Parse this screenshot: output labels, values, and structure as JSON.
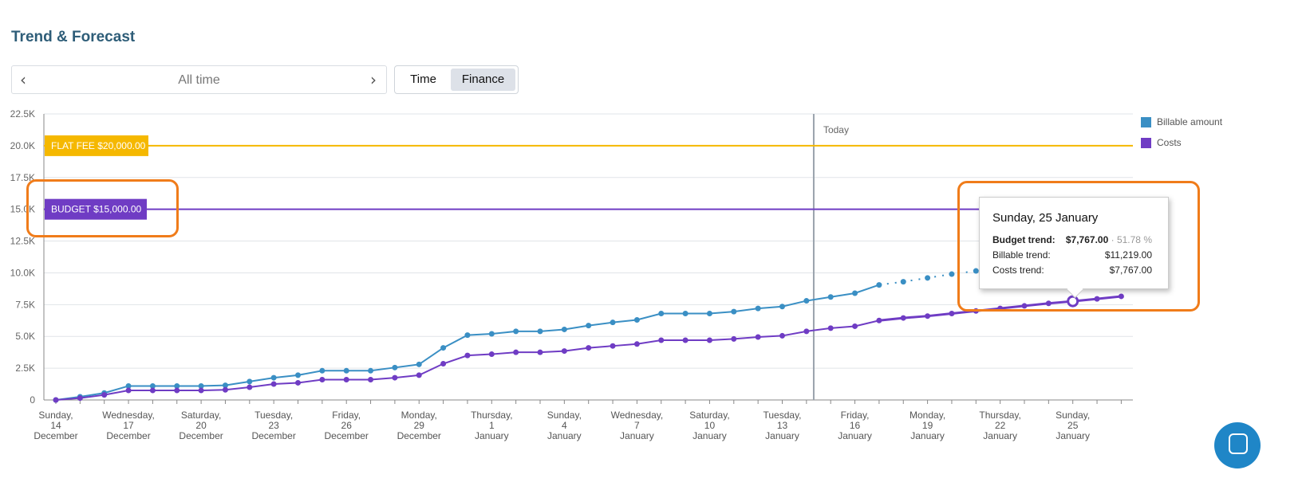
{
  "header": {
    "title": "Trend & Forecast"
  },
  "range": {
    "label": "All time",
    "prev_icon": "chevron-left-icon",
    "next_icon": "chevron-right-icon"
  },
  "view_toggle": {
    "time_label": "Time",
    "finance_label": "Finance",
    "selected": "Finance"
  },
  "chart_data": {
    "type": "line",
    "ylim": [
      0,
      22500
    ],
    "y_ticks": [
      "0",
      "2.5K",
      "5.0K",
      "7.5K",
      "10.0K",
      "12.5K",
      "15.0K",
      "17.5K",
      "20.0K",
      "22.5K"
    ],
    "y_tick_values": [
      0,
      2500,
      5000,
      7500,
      10000,
      12500,
      15000,
      17500,
      20000,
      22500
    ],
    "x_ticks": [
      [
        "Sunday,",
        "14",
        "December"
      ],
      [
        "Wednesday,",
        "17",
        "December"
      ],
      [
        "Saturday,",
        "20",
        "December"
      ],
      [
        "Tuesday,",
        "23",
        "December"
      ],
      [
        "Friday,",
        "26",
        "December"
      ],
      [
        "Monday,",
        "29",
        "December"
      ],
      [
        "Thursday,",
        "1",
        "January"
      ],
      [
        "Sunday,",
        "4",
        "January"
      ],
      [
        "Wednesday,",
        "7",
        "January"
      ],
      [
        "Saturday,",
        "10",
        "January"
      ],
      [
        "Tuesday,",
        "13",
        "January"
      ],
      [
        "Friday,",
        "16",
        "January"
      ],
      [
        "Monday,",
        "19",
        "January"
      ],
      [
        "Thursday,",
        "22",
        "January"
      ],
      [
        "Sunday,",
        "25",
        "January"
      ]
    ],
    "today_label": "Today",
    "grid": true,
    "legend_position": "top-right",
    "reference_lines": [
      {
        "label": "FLAT FEE $20,000.00",
        "value": 20000,
        "color": "#f5b800"
      },
      {
        "label": "BUDGET $15,000.00",
        "value": 15000,
        "color": "#6f3cc4"
      }
    ],
    "series": [
      {
        "name": "Billable amount",
        "color": "#3a8fc4",
        "actual": [
          0,
          250,
          550,
          1100,
          1100,
          1100,
          1100,
          1150,
          1450,
          1750,
          1950,
          2300,
          2300,
          2300,
          2550,
          2800,
          4100,
          5100,
          5200,
          5400,
          5400,
          5550,
          5850,
          6100,
          6300,
          6800,
          6800,
          6800,
          6950,
          7200,
          7350,
          7800,
          8100,
          8400,
          9050
        ],
        "forecast": [
          9050,
          9300,
          9600,
          9900,
          10150
        ]
      },
      {
        "name": "Costs",
        "color": "#6f3cc4",
        "actual": [
          0,
          150,
          400,
          750,
          750,
          750,
          750,
          800,
          1000,
          1250,
          1350,
          1600,
          1600,
          1600,
          1750,
          1950,
          2850,
          3500,
          3600,
          3750,
          3750,
          3850,
          4100,
          4250,
          4400,
          4700,
          4700,
          4700,
          4800,
          4950,
          5050,
          5400,
          5650,
          5800,
          6250
        ],
        "forecast": [
          6250,
          6450,
          6600,
          6800,
          7000,
          7200,
          7400,
          7600,
          7767,
          7950,
          8150
        ]
      }
    ]
  },
  "tooltip": {
    "date": "Sunday, 25 January",
    "budget_label": "Budget trend:",
    "budget_value": "$7,767.00",
    "budget_pct": "51.78 %",
    "billable_label": "Billable trend:",
    "billable_value": "$11,219.00",
    "costs_label": "Costs trend:",
    "costs_value": "$7,767.00"
  },
  "colors": {
    "accent": "#2e5d78",
    "callout": "#f07c1a"
  },
  "chat": {
    "icon": "chat-icon"
  }
}
